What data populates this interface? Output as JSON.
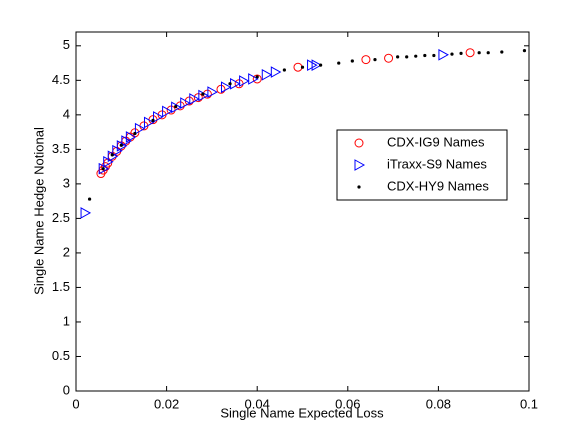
{
  "chart_data": {
    "type": "scatter",
    "xlabel": "Single Name Expected Loss",
    "ylabel": "Single Name Hedge Notional",
    "xlim": [
      0,
      0.1
    ],
    "ylim": [
      0,
      5.2
    ],
    "xticks": [
      0,
      0.02,
      0.04,
      0.06,
      0.08,
      0.1
    ],
    "yticks": [
      0,
      0.5,
      1,
      1.5,
      2,
      2.5,
      3,
      3.5,
      4,
      4.5,
      5
    ],
    "grid": false,
    "legend": "right",
    "series": [
      {
        "name": "CDX-IG9 Names",
        "color": "#ff0000",
        "marker": "circle",
        "x": [
          0.0055,
          0.006,
          0.0065,
          0.007,
          0.008,
          0.009,
          0.01,
          0.011,
          0.012,
          0.013,
          0.015,
          0.017,
          0.019,
          0.021,
          0.023,
          0.025,
          0.027,
          0.029,
          0.032,
          0.036,
          0.04,
          0.049,
          0.064,
          0.069,
          0.087
        ],
        "values": [
          3.15,
          3.2,
          3.25,
          3.3,
          3.4,
          3.47,
          3.55,
          3.62,
          3.68,
          3.74,
          3.84,
          3.93,
          4.0,
          4.07,
          4.13,
          4.2,
          4.25,
          4.3,
          4.37,
          4.45,
          4.52,
          4.69,
          4.8,
          4.82,
          4.9
        ]
      },
      {
        "name": "iTraxx-S9 Names",
        "color": "#0000ff",
        "marker": "triangle-right",
        "x": [
          0.002,
          0.006,
          0.007,
          0.008,
          0.009,
          0.01,
          0.011,
          0.012,
          0.014,
          0.016,
          0.018,
          0.02,
          0.022,
          0.024,
          0.026,
          0.028,
          0.03,
          0.033,
          0.035,
          0.037,
          0.039,
          0.042,
          0.044,
          0.052,
          0.053,
          0.081
        ],
        "values": [
          2.58,
          3.22,
          3.32,
          3.4,
          3.48,
          3.55,
          3.62,
          3.68,
          3.8,
          3.89,
          3.97,
          4.05,
          4.11,
          4.17,
          4.23,
          4.28,
          4.33,
          4.4,
          4.45,
          4.49,
          4.52,
          4.58,
          4.62,
          4.72,
          4.72,
          4.87
        ]
      },
      {
        "name": "CDX-HY9 Names",
        "color": "#000000",
        "marker": "dot",
        "x": [
          0.003,
          0.006,
          0.008,
          0.01,
          0.013,
          0.017,
          0.022,
          0.028,
          0.034,
          0.04,
          0.046,
          0.05,
          0.054,
          0.058,
          0.061,
          0.066,
          0.071,
          0.073,
          0.075,
          0.077,
          0.079,
          0.083,
          0.085,
          0.089,
          0.091,
          0.094,
          0.099
        ],
        "values": [
          2.78,
          3.22,
          3.42,
          3.56,
          3.73,
          3.92,
          4.12,
          4.3,
          4.45,
          4.55,
          4.65,
          4.69,
          4.72,
          4.75,
          4.78,
          4.8,
          4.84,
          4.84,
          4.85,
          4.86,
          4.86,
          4.88,
          4.89,
          4.9,
          4.9,
          4.91,
          4.93
        ]
      }
    ]
  }
}
